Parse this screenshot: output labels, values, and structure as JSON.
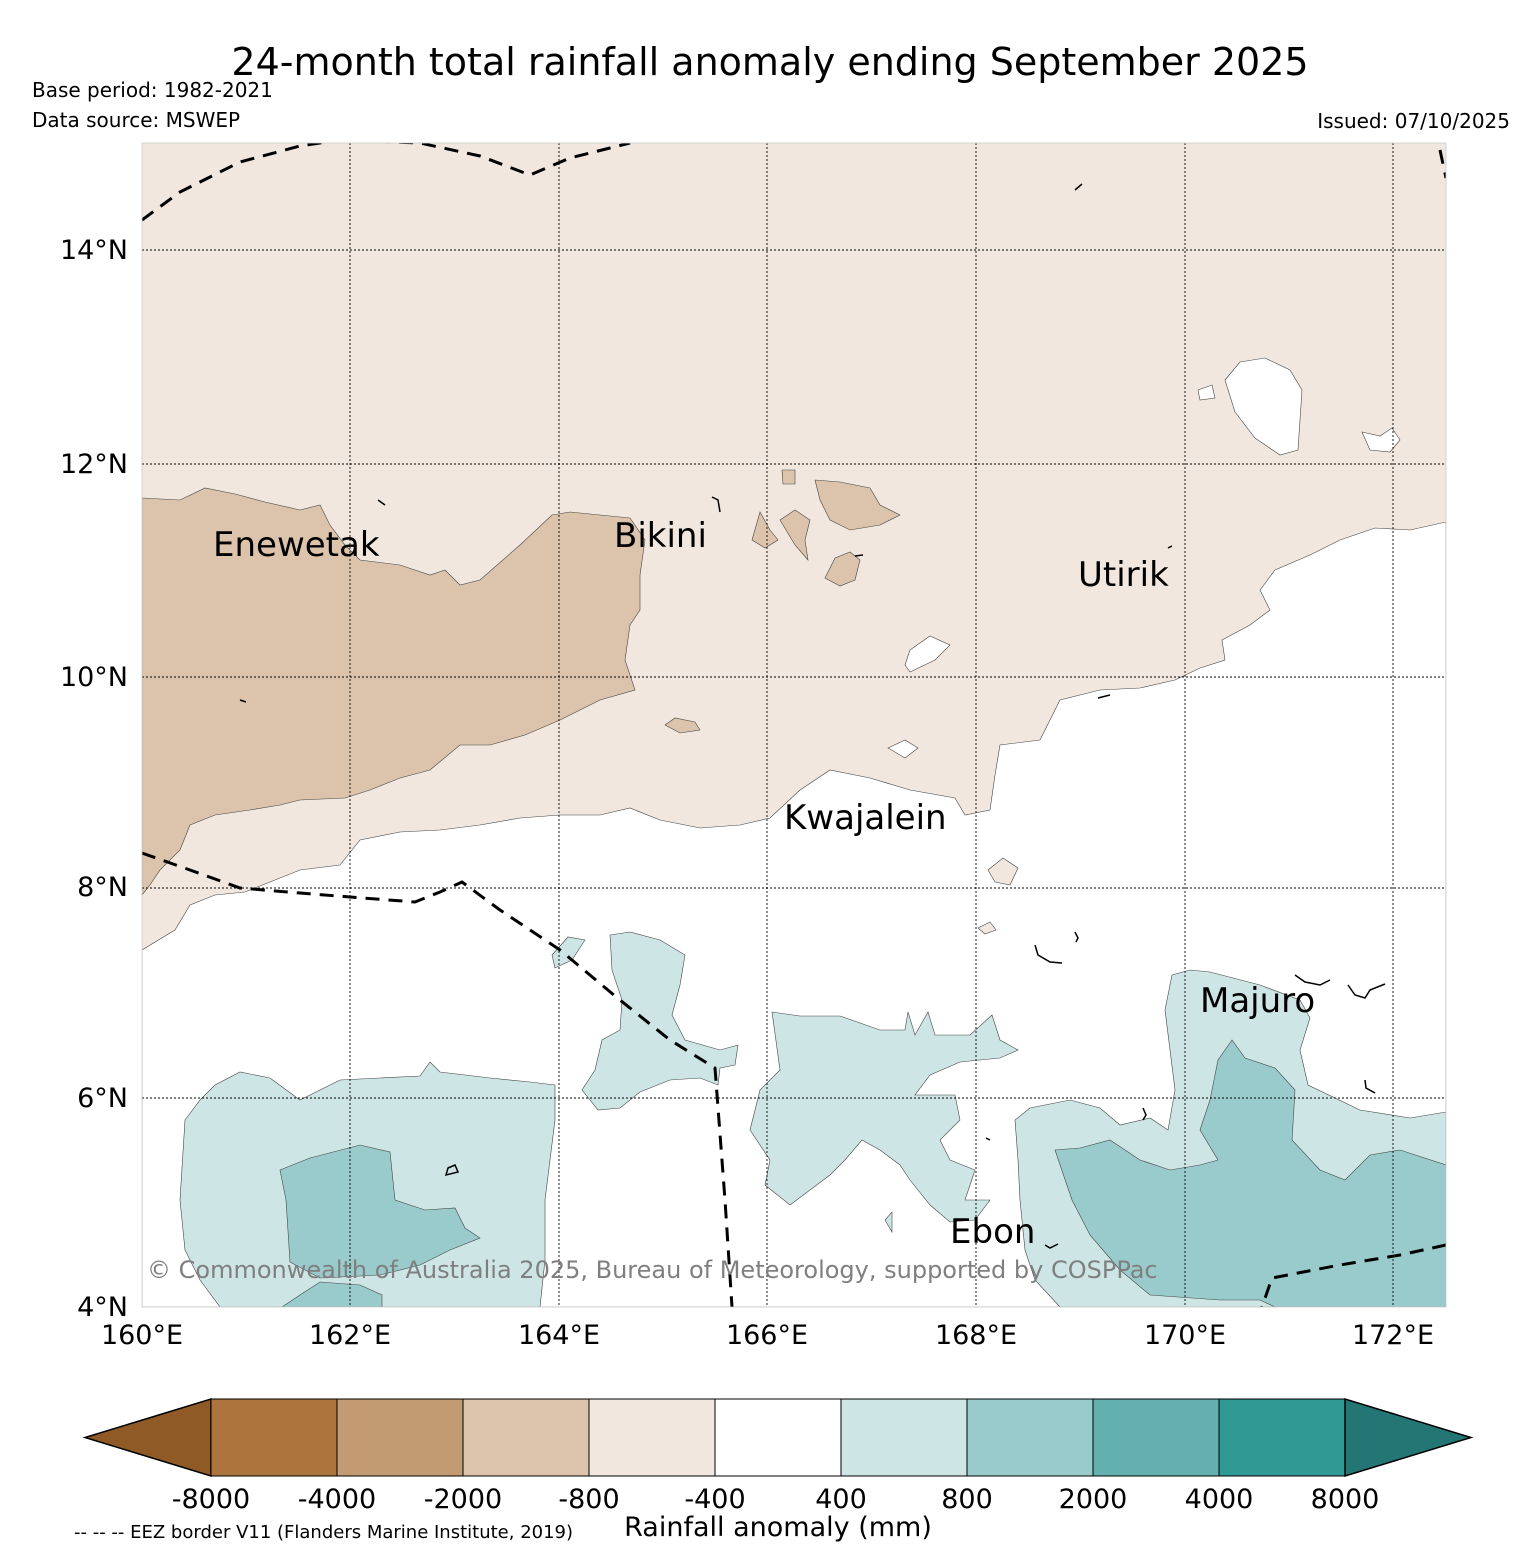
{
  "header": {
    "title": "24-month total rainfall anomaly ending September 2025",
    "base_period": "Base period: 1982-2021",
    "data_source": "Data source: MSWEP",
    "issued": "Issued: 07/10/2025"
  },
  "map": {
    "lat_labels": [
      "14°N",
      "12°N",
      "10°N",
      "8°N",
      "6°N",
      "4°N"
    ],
    "lon_labels": [
      "160°E",
      "162°E",
      "164°E",
      "166°E",
      "168°E",
      "170°E",
      "172°E"
    ],
    "places": [
      "Enewetak",
      "Bikini",
      "Utirik",
      "Kwajalein",
      "Majuro",
      "Ebon"
    ],
    "copyright": "© Commonwealth of Australia 2025, Bureau of Meteorology, supported by COSPPac"
  },
  "colorbar": {
    "title": "Rainfall anomaly (mm)",
    "ticks": [
      "-8000",
      "-4000",
      "-2000",
      "-800",
      "-400",
      "400",
      "800",
      "2000",
      "4000",
      "8000"
    ],
    "colors": [
      "#8f5a26",
      "#ad753d",
      "#c39b72",
      "#dbc4ab",
      "#f1e7de",
      "#ffffff",
      "#cde5e5",
      "#9acbcc",
      "#63b0af",
      "#2f9994",
      "#247674"
    ]
  },
  "legend": {
    "eez_note": "-- -- -- EEZ border V11 (Flanders Marine Institute, 2019)"
  }
}
